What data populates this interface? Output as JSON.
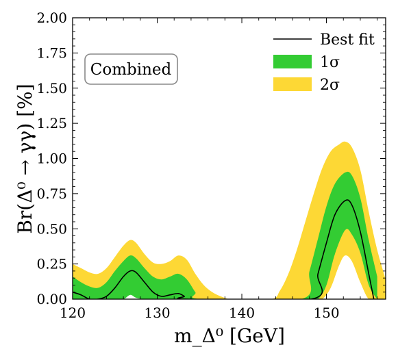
{
  "chart_data": {
    "type": "area",
    "title": "",
    "annotation": "Combined",
    "xlabel": "m_Δ⁰ [GeV]",
    "ylabel": "Br(Δ⁰ → γγ) [%]",
    "xlim": [
      120,
      157
    ],
    "ylim": [
      0.0,
      2.0
    ],
    "x_ticks": [
      120,
      130,
      140,
      150
    ],
    "y_ticks": [
      0.0,
      0.25,
      0.5,
      0.75,
      1.0,
      1.25,
      1.5,
      1.75,
      2.0
    ],
    "x_tick_labels": [
      "120",
      "130",
      "140",
      "150"
    ],
    "y_tick_labels": [
      "0.00",
      "0.25",
      "0.50",
      "0.75",
      "1.00",
      "1.25",
      "1.50",
      "1.75",
      "2.00"
    ],
    "grid": false,
    "legend_position": "top-right",
    "colors": {
      "best_fit": "#000000",
      "sigma1": "#33cc33",
      "sigma2": "#fdd835"
    },
    "series": [
      {
        "name": "2σ",
        "kind": "band",
        "x": [
          120,
          121,
          122,
          123,
          124,
          125,
          126,
          126.8,
          127.5,
          128.5,
          129.5,
          130.5,
          131.5,
          132.5,
          133.5,
          134.5,
          135.5,
          136.5,
          137.5,
          138.5,
          139.5,
          143.5,
          144.5,
          145.5,
          146.5,
          147.5,
          148.5,
          149.5,
          150.5,
          151.5,
          152.2,
          153,
          154,
          155,
          156,
          157
        ],
        "upper": [
          0.25,
          0.22,
          0.19,
          0.18,
          0.22,
          0.3,
          0.38,
          0.42,
          0.4,
          0.32,
          0.26,
          0.25,
          0.27,
          0.31,
          0.28,
          0.18,
          0.1,
          0.05,
          0.02,
          0.0,
          0.0,
          0.0,
          0.06,
          0.18,
          0.35,
          0.55,
          0.75,
          0.93,
          1.05,
          1.1,
          1.12,
          1.08,
          0.92,
          0.62,
          0.35,
          0.14
        ],
        "lower": [
          0.0,
          0.0,
          0.0,
          0.0,
          0.0,
          0.0,
          0.0,
          0.04,
          0.02,
          0.0,
          0.0,
          0.0,
          0.0,
          0.0,
          0.0,
          0.0,
          0.0,
          0.0,
          0.0,
          0.0,
          0.0,
          0.0,
          0.0,
          0.0,
          0.0,
          0.0,
          0.0,
          0.0,
          0.08,
          0.24,
          0.31,
          0.27,
          0.12,
          0.0,
          0.0,
          0.0
        ]
      },
      {
        "name": "1σ",
        "kind": "band",
        "x": [
          120,
          121,
          122,
          123,
          124,
          125,
          126,
          126.8,
          127.5,
          128.5,
          129.5,
          130.5,
          131.5,
          132.5,
          133.5,
          134.5,
          135.2,
          147,
          148,
          149,
          150,
          151,
          152.2,
          153,
          154,
          155,
          156
        ],
        "upper": [
          0.16,
          0.12,
          0.09,
          0.08,
          0.12,
          0.2,
          0.27,
          0.31,
          0.29,
          0.22,
          0.16,
          0.14,
          0.16,
          0.18,
          0.14,
          0.05,
          0.0,
          0.0,
          0.2,
          0.43,
          0.66,
          0.82,
          0.9,
          0.88,
          0.72,
          0.42,
          0.16
        ],
        "lower": [
          0.0,
          0.0,
          0.0,
          0.0,
          0.0,
          0.0,
          0.0,
          0.03,
          0.01,
          0.0,
          0.0,
          0.0,
          0.0,
          0.0,
          0.0,
          0.0,
          0.0,
          0.0,
          0.0,
          0.0,
          0.1,
          0.32,
          0.49,
          0.46,
          0.33,
          0.1,
          0.0
        ]
      },
      {
        "name": "Best fit",
        "kind": "line",
        "x": [
          120,
          121,
          122,
          123,
          124,
          125,
          126,
          126.8,
          127.5,
          128.5,
          129.5,
          130.5,
          131.5,
          132.5,
          133.2,
          133.6,
          148.2,
          149,
          150,
          151,
          152.2,
          153,
          154,
          155,
          155.6
        ],
        "y": [
          0.05,
          0.03,
          0.0,
          0.0,
          0.02,
          0.08,
          0.16,
          0.2,
          0.19,
          0.12,
          0.05,
          0.02,
          0.03,
          0.04,
          0.02,
          0.0,
          0.0,
          0.18,
          0.4,
          0.6,
          0.7,
          0.67,
          0.48,
          0.18,
          0.0
        ]
      }
    ]
  },
  "legend": {
    "items": [
      {
        "label": "Best fit",
        "kind": "line",
        "color": "#000000"
      },
      {
        "label": "1σ",
        "kind": "patch",
        "color": "#33cc33"
      },
      {
        "label": "2σ",
        "kind": "patch",
        "color": "#fdd835"
      }
    ]
  }
}
